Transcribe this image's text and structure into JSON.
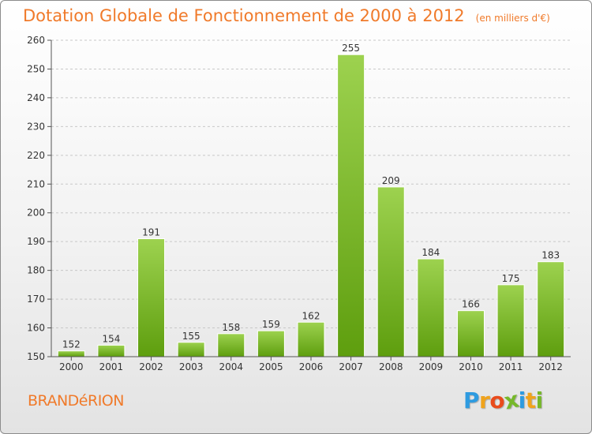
{
  "title": "Dotation Globale de Fonctionnement de 2000 à 2012",
  "subtitle": "(en milliers d'€)",
  "commune": "BRANDéRION",
  "brand": {
    "letters": [
      "P",
      "r",
      "o",
      "x",
      "i",
      "t",
      "i"
    ],
    "colors": [
      "#2e9be0",
      "#f0a31c",
      "#e94b1c",
      "#76b82a",
      "#2e9be0",
      "#f0a31c",
      "#76b82a"
    ]
  },
  "colors": {
    "accent": "#f07a2a",
    "bar_light": "#9dd24f",
    "bar_dark": "#5e9e0e",
    "grid": "#c8c8c8",
    "axis_text": "#333333"
  },
  "chart_data": {
    "type": "bar",
    "categories": [
      "2000",
      "2001",
      "2002",
      "2003",
      "2004",
      "2005",
      "2006",
      "2007",
      "2008",
      "2009",
      "2010",
      "2011",
      "2012"
    ],
    "values": [
      152,
      154,
      191,
      155,
      158,
      159,
      162,
      255,
      209,
      184,
      166,
      175,
      183
    ],
    "title": "Dotation Globale de Fonctionnement de 2000 à 2012",
    "ylim": [
      150,
      260
    ],
    "yticks": [
      150,
      160,
      170,
      180,
      190,
      200,
      210,
      220,
      230,
      240,
      250,
      260
    ],
    "grid": true
  }
}
